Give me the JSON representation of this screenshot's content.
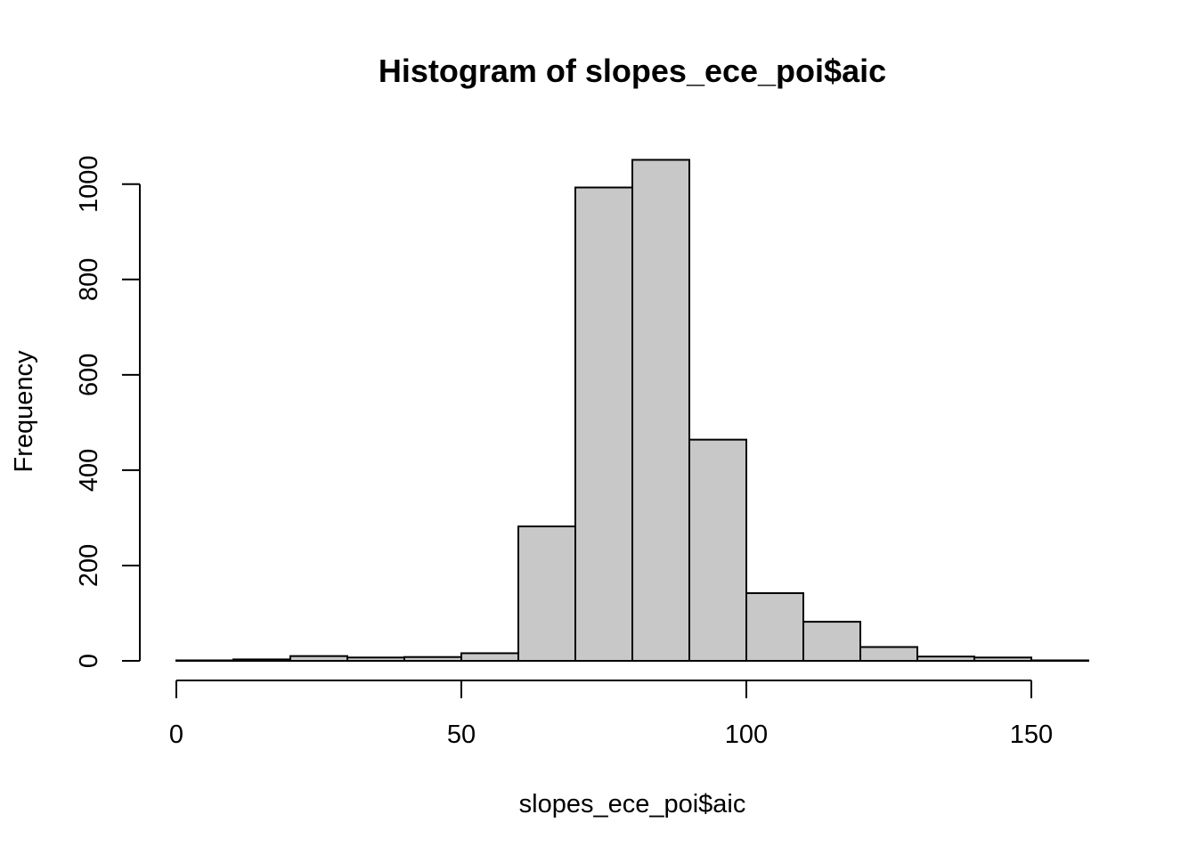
{
  "chart_data": {
    "type": "bar",
    "title": "Histogram of slopes_ece_poi$aic",
    "xlabel": "slopes_ece_poi$aic",
    "ylabel": "Frequency",
    "bin_edges": [
      0,
      10,
      20,
      30,
      40,
      50,
      60,
      70,
      80,
      90,
      100,
      110,
      120,
      130,
      140,
      150,
      160
    ],
    "values": [
      1,
      3,
      10,
      7,
      8,
      16,
      282,
      993,
      1051,
      464,
      142,
      82,
      29,
      9,
      7,
      1
    ],
    "xlim": [
      0,
      160
    ],
    "ylim": [
      0,
      1050
    ],
    "x_ticks": [
      0,
      50,
      100,
      150
    ],
    "x_tick_labels": [
      "0",
      "50",
      "100",
      "150"
    ],
    "y_ticks": [
      0,
      200,
      400,
      600,
      800,
      1000
    ],
    "y_tick_labels": [
      "0",
      "200",
      "400",
      "600",
      "800",
      "1000"
    ],
    "bar_fill": "#c8c8c8",
    "bar_stroke": "#000000",
    "grid": false,
    "legend": "none"
  }
}
